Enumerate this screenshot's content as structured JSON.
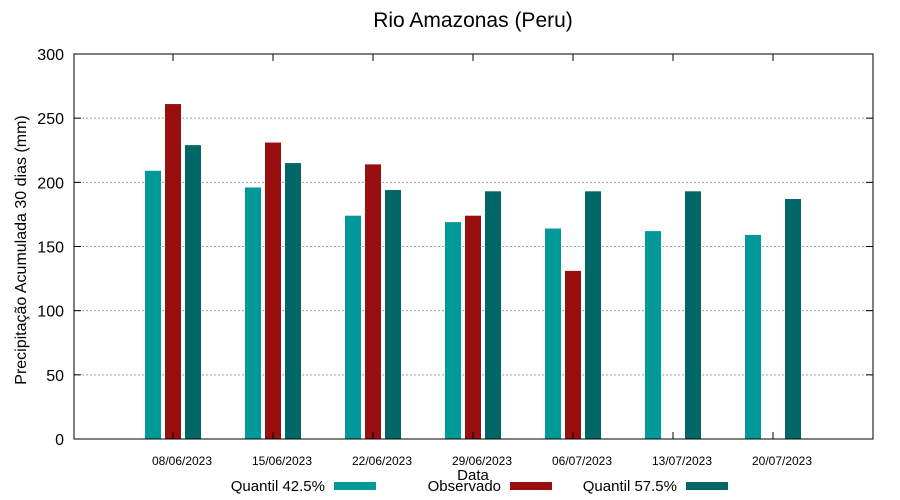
{
  "chart_data": {
    "type": "bar",
    "title": "Rio Amazonas (Peru)",
    "xlabel": "Data",
    "ylabel": "Precipitação Acumulada 30 dias (mm)",
    "ylim": [
      0,
      300
    ],
    "yticks": [
      0,
      50,
      100,
      150,
      200,
      250,
      300
    ],
    "grid": true,
    "legend_position": "bottom",
    "categories": [
      "08/06/2023",
      "15/06/2023",
      "22/06/2023",
      "29/06/2023",
      "06/07/2023",
      "13/07/2023",
      "20/07/2023"
    ],
    "series": [
      {
        "name": "Quantil 42.5%",
        "color": "#009999",
        "values": [
          209,
          196,
          174,
          169,
          164,
          162,
          159
        ]
      },
      {
        "name": "Observado",
        "color": "#990f0f",
        "values": [
          261,
          231,
          214,
          174,
          131,
          null,
          null
        ]
      },
      {
        "name": "Quantil 57.5%",
        "color": "#006666",
        "values": [
          229,
          215,
          194,
          193,
          193,
          193,
          187
        ]
      }
    ]
  }
}
